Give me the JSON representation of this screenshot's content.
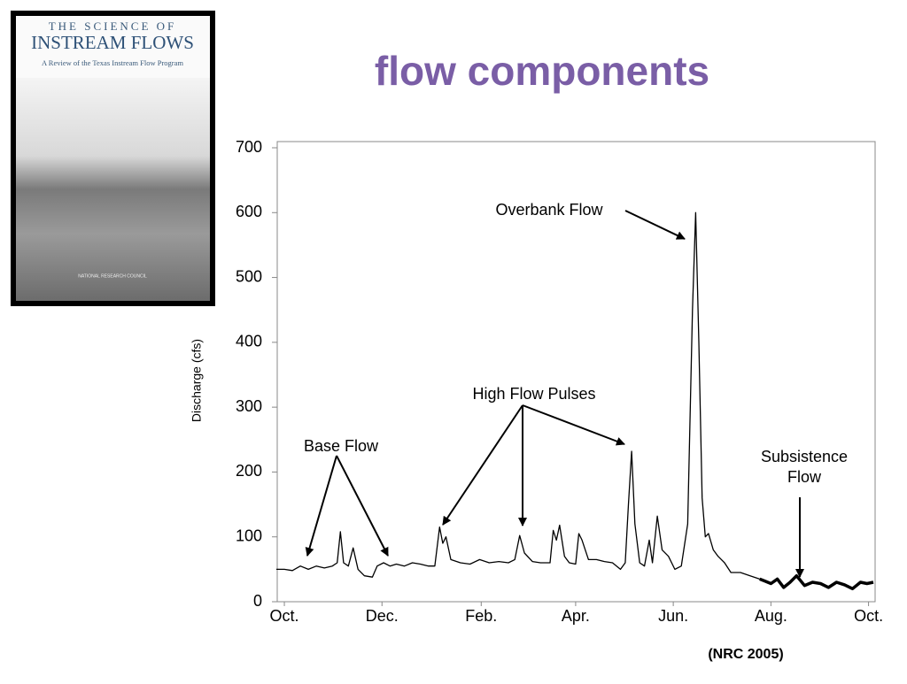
{
  "cover": {
    "line1": "THE SCIENCE OF",
    "line2": "INSTREAM FLOWS",
    "line3": "A Review of the Texas Instream Flow Program",
    "line4": "NATIONAL RESEARCH COUNCIL"
  },
  "chart_data": {
    "type": "line",
    "title": "flow components",
    "title_color": "#7a5ea6",
    "y_label": "Discharge (cfs)",
    "source": "(NRC 2005)",
    "annotations": [
      "Overbank Flow",
      "High Flow Pulses",
      "Base Flow",
      "Subsistence",
      "Flow"
    ],
    "xlim": [
      -5,
      368
    ],
    "xticks": [
      {
        "value": 0,
        "label": "Oct."
      },
      {
        "value": 61,
        "label": "Dec."
      },
      {
        "value": 123,
        "label": "Feb."
      },
      {
        "value": 182,
        "label": "Apr."
      },
      {
        "value": 243,
        "label": "Jun."
      },
      {
        "value": 304,
        "label": "Aug."
      },
      {
        "value": 365,
        "label": "Oct."
      }
    ],
    "ylim": [
      0,
      700
    ],
    "yticks": [
      0,
      100,
      200,
      300,
      400,
      500,
      600,
      700
    ],
    "x": [
      -5,
      0,
      5,
      10,
      15,
      20,
      25,
      30,
      33,
      35,
      37,
      40,
      43,
      46,
      50,
      55,
      58,
      62,
      66,
      70,
      75,
      80,
      85,
      90,
      94,
      97,
      99,
      101,
      104,
      110,
      116,
      122,
      128,
      134,
      140,
      144,
      147,
      150,
      155,
      160,
      166,
      168,
      170,
      172,
      175,
      178,
      182,
      184,
      186,
      190,
      195,
      200,
      205,
      210,
      213,
      215,
      217,
      219,
      222,
      225,
      228,
      230,
      233,
      236,
      240,
      244,
      248,
      252,
      255,
      257,
      259,
      261,
      263,
      265,
      268,
      271,
      275,
      279,
      285,
      291,
      297,
      300,
      304,
      308,
      312,
      316,
      320,
      325,
      330,
      335,
      340,
      345,
      350,
      355,
      360,
      364,
      368
    ],
    "series": [
      {
        "color": "#000000",
        "width": 1.3,
        "values": [
          50,
          50,
          48,
          55,
          50,
          55,
          52,
          55,
          60,
          108,
          60,
          55,
          83,
          50,
          40,
          38,
          55,
          60,
          55,
          58,
          55,
          60,
          58,
          55,
          55,
          115,
          90,
          100,
          65,
          60,
          58,
          65,
          60,
          62,
          60,
          65,
          102,
          75,
          62,
          60,
          60,
          110,
          95,
          118,
          70,
          60,
          58,
          105,
          95,
          65,
          65,
          62,
          60,
          50,
          60,
          150,
          232,
          120,
          60,
          55,
          95,
          60,
          132,
          80,
          70,
          50,
          55,
          120,
          450,
          600,
          400,
          160,
          100,
          105,
          80,
          70,
          60,
          45,
          45,
          40,
          35,
          null,
          null,
          null,
          null,
          null,
          null,
          null,
          null,
          null,
          null,
          null,
          null,
          null,
          null,
          null,
          null
        ]
      },
      {
        "color": "#000000",
        "width": 3.5,
        "values": [
          null,
          null,
          null,
          null,
          null,
          null,
          null,
          null,
          null,
          null,
          null,
          null,
          null,
          null,
          null,
          null,
          null,
          null,
          null,
          null,
          null,
          null,
          null,
          null,
          null,
          null,
          null,
          null,
          null,
          null,
          null,
          null,
          null,
          null,
          null,
          null,
          null,
          null,
          null,
          null,
          null,
          null,
          null,
          null,
          null,
          null,
          null,
          null,
          null,
          null,
          null,
          null,
          null,
          null,
          null,
          null,
          null,
          null,
          null,
          null,
          null,
          null,
          null,
          null,
          null,
          null,
          null,
          null,
          null,
          null,
          null,
          null,
          null,
          null,
          null,
          null,
          null,
          null,
          null,
          null,
          35,
          32,
          28,
          35,
          22,
          30,
          40,
          25,
          30,
          28,
          22,
          30,
          26,
          20,
          30,
          28,
          30
        ]
      }
    ]
  }
}
